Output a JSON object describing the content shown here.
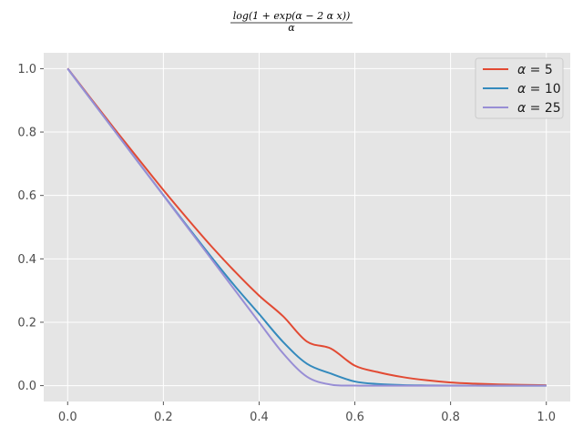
{
  "chart_data": {
    "type": "line",
    "title": "log(1 + exp(α − 2 α x))",
    "title_denominator": "α",
    "xlabel": "",
    "ylabel": "",
    "xlim": [
      -0.05,
      1.05
    ],
    "ylim": [
      -0.05,
      1.05
    ],
    "xticks": [
      0.0,
      0.2,
      0.4,
      0.6,
      0.8,
      1.0
    ],
    "xtick_labels": [
      "0.0",
      "0.2",
      "0.4",
      "0.6",
      "0.8",
      "1.0"
    ],
    "yticks": [
      0.0,
      0.2,
      0.4,
      0.6,
      0.8,
      1.0
    ],
    "ytick_labels": [
      "0.0",
      "0.2",
      "0.4",
      "0.6",
      "0.8",
      "1.0"
    ],
    "grid": true,
    "legend_position": "top-right",
    "x": [
      0.0,
      0.05,
      0.1,
      0.15,
      0.2,
      0.25,
      0.3,
      0.35,
      0.4,
      0.45,
      0.5,
      0.55,
      0.6,
      0.65,
      0.7,
      0.75,
      0.8,
      0.85,
      0.9,
      0.95,
      1.0
    ],
    "series": [
      {
        "name": "α = 5",
        "name_symbol": "α",
        "name_rest": " = 5",
        "color": "#E24A33",
        "values": [
          1.001,
          0.903,
          0.806,
          0.711,
          0.617,
          0.527,
          0.44,
          0.359,
          0.284,
          0.219,
          0.139,
          0.117,
          0.063,
          0.042,
          0.027,
          0.017,
          0.01,
          0.0064,
          0.0039,
          0.0024,
          0.0013
        ]
      },
      {
        "name": "α = 10",
        "name_symbol": "α",
        "name_rest": " = 10",
        "color": "#348ABD",
        "values": [
          1.0,
          0.9,
          0.8,
          0.7,
          0.601,
          0.503,
          0.406,
          0.313,
          0.226,
          0.138,
          0.069,
          0.038,
          0.013,
          0.0049,
          0.0018,
          0.0007,
          0.0002,
          0.0001,
          0.0,
          0.0,
          0.0
        ]
      },
      {
        "name": "α = 25",
        "name_symbol": "α",
        "name_rest": " = 25",
        "color": "#988ED5",
        "values": [
          1.0,
          0.9,
          0.8,
          0.7,
          0.6,
          0.5,
          0.4,
          0.3,
          0.2,
          0.102,
          0.028,
          0.0032,
          0.0002,
          0.0,
          0.0,
          0.0,
          0.0,
          0.0,
          0.0,
          0.0,
          0.0
        ]
      }
    ]
  }
}
